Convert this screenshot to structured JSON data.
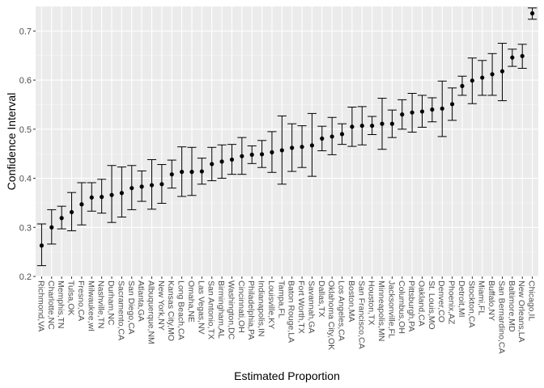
{
  "colors": {
    "panel_background": "#ebebeb",
    "grid_major": "#ffffff",
    "grid_minor": "#f5f5f5",
    "marker": "#000000"
  },
  "chart_data": {
    "type": "scatter",
    "xlabel": "Estimated Proportion",
    "ylabel": "Confidence Interval",
    "ylim": [
      0.2,
      0.75
    ],
    "yticks": [
      0.2,
      0.3,
      0.4,
      0.5,
      0.6,
      0.7
    ],
    "grid": true,
    "error_bars": true,
    "points": [
      {
        "city": "Richmond,VA",
        "estimate": 0.263,
        "lower": 0.222,
        "upper": 0.307
      },
      {
        "city": "Charlotte,NC",
        "estimate": 0.3,
        "lower": 0.266,
        "upper": 0.336
      },
      {
        "city": "Memphis,TN",
        "estimate": 0.319,
        "lower": 0.297,
        "upper": 0.343
      },
      {
        "city": "Tulsa,OK",
        "estimate": 0.331,
        "lower": 0.293,
        "upper": 0.371
      },
      {
        "city": "Fresno,CA",
        "estimate": 0.347,
        "lower": 0.305,
        "upper": 0.391
      },
      {
        "city": "Milwaukee,wI",
        "estimate": 0.361,
        "lower": 0.333,
        "upper": 0.391
      },
      {
        "city": "Nashville,TN",
        "estimate": 0.362,
        "lower": 0.329,
        "upper": 0.398
      },
      {
        "city": "Durham,NC",
        "estimate": 0.366,
        "lower": 0.31,
        "upper": 0.426
      },
      {
        "city": "Sacramento,CA",
        "estimate": 0.37,
        "lower": 0.321,
        "upper": 0.423
      },
      {
        "city": "San Diego,CA",
        "estimate": 0.38,
        "lower": 0.336,
        "upper": 0.426
      },
      {
        "city": "Atlanta,GA",
        "estimate": 0.383,
        "lower": 0.353,
        "upper": 0.415
      },
      {
        "city": "Albuquerque,NM",
        "estimate": 0.386,
        "lower": 0.337,
        "upper": 0.438
      },
      {
        "city": "New York,NY",
        "estimate": 0.388,
        "lower": 0.349,
        "upper": 0.428
      },
      {
        "city": "Kansas City,MO",
        "estimate": 0.408,
        "lower": 0.38,
        "upper": 0.437
      },
      {
        "city": "Long Beach,CA",
        "estimate": 0.413,
        "lower": 0.363,
        "upper": 0.464
      },
      {
        "city": "Omaha,NE",
        "estimate": 0.413,
        "lower": 0.365,
        "upper": 0.463
      },
      {
        "city": "Las Vegas,NV",
        "estimate": 0.414,
        "lower": 0.388,
        "upper": 0.441
      },
      {
        "city": "San Antonio,TX",
        "estimate": 0.429,
        "lower": 0.395,
        "upper": 0.463
      },
      {
        "city": "Birmingham,AL",
        "estimate": 0.434,
        "lower": 0.4,
        "upper": 0.468
      },
      {
        "city": "Washington,DC",
        "estimate": 0.438,
        "lower": 0.408,
        "upper": 0.469
      },
      {
        "city": "Cincinnati,OH",
        "estimate": 0.445,
        "lower": 0.408,
        "upper": 0.483
      },
      {
        "city": "Philadelphia,PA",
        "estimate": 0.448,
        "lower": 0.43,
        "upper": 0.466
      },
      {
        "city": "Indianapolis,IN",
        "estimate": 0.449,
        "lower": 0.422,
        "upper": 0.477
      },
      {
        "city": "Louisville,KY",
        "estimate": 0.453,
        "lower": 0.412,
        "upper": 0.495
      },
      {
        "city": "Tampa,FL",
        "estimate": 0.457,
        "lower": 0.388,
        "upper": 0.527
      },
      {
        "city": "Baton Rouge,LA",
        "estimate": 0.462,
        "lower": 0.414,
        "upper": 0.511
      },
      {
        "city": "Fort Worth,TX",
        "estimate": 0.464,
        "lower": 0.422,
        "upper": 0.507
      },
      {
        "city": "Savannah,GA",
        "estimate": 0.467,
        "lower": 0.404,
        "upper": 0.532
      },
      {
        "city": "Dallas,TX",
        "estimate": 0.481,
        "lower": 0.456,
        "upper": 0.506
      },
      {
        "city": "Oklahoma City,OK",
        "estimate": 0.485,
        "lower": 0.448,
        "upper": 0.524
      },
      {
        "city": "Los Angeles,CA",
        "estimate": 0.49,
        "lower": 0.469,
        "upper": 0.511
      },
      {
        "city": "Boston,MA",
        "estimate": 0.505,
        "lower": 0.465,
        "upper": 0.545
      },
      {
        "city": "San Francisco,CA",
        "estimate": 0.507,
        "lower": 0.468,
        "upper": 0.546
      },
      {
        "city": "Houston,TX",
        "estimate": 0.507,
        "lower": 0.489,
        "upper": 0.526
      },
      {
        "city": "Minneapolis,MN",
        "estimate": 0.511,
        "lower": 0.459,
        "upper": 0.563
      },
      {
        "city": "Jacksonville,FL",
        "estimate": 0.511,
        "lower": 0.483,
        "upper": 0.539
      },
      {
        "city": "Columbus,OH",
        "estimate": 0.53,
        "lower": 0.5,
        "upper": 0.56
      },
      {
        "city": "Pittsburgh,PA",
        "estimate": 0.534,
        "lower": 0.494,
        "upper": 0.573
      },
      {
        "city": "Oakland,CA",
        "estimate": 0.536,
        "lower": 0.504,
        "upper": 0.569
      },
      {
        "city": "St. Louis,MO",
        "estimate": 0.54,
        "lower": 0.515,
        "upper": 0.564
      },
      {
        "city": "Denver,CO",
        "estimate": 0.542,
        "lower": 0.485,
        "upper": 0.598
      },
      {
        "city": "Phoenix,AZ",
        "estimate": 0.551,
        "lower": 0.518,
        "upper": 0.584
      },
      {
        "city": "Detroit,MI",
        "estimate": 0.588,
        "lower": 0.569,
        "upper": 0.608
      },
      {
        "city": "Stockton,CA",
        "estimate": 0.599,
        "lower": 0.552,
        "upper": 0.645
      },
      {
        "city": "Miami,FL",
        "estimate": 0.605,
        "lower": 0.569,
        "upper": 0.64
      },
      {
        "city": "Buffalo,NY",
        "estimate": 0.612,
        "lower": 0.569,
        "upper": 0.654
      },
      {
        "city": "San Bernardino,CA",
        "estimate": 0.618,
        "lower": 0.558,
        "upper": 0.675
      },
      {
        "city": "Baltimore,MD",
        "estimate": 0.646,
        "lower": 0.628,
        "upper": 0.663
      },
      {
        "city": "New Orleans,LA",
        "estimate": 0.649,
        "lower": 0.624,
        "upper": 0.673
      },
      {
        "city": "Chicago,IL",
        "estimate": 0.736,
        "lower": 0.724,
        "upper": 0.747
      }
    ]
  }
}
